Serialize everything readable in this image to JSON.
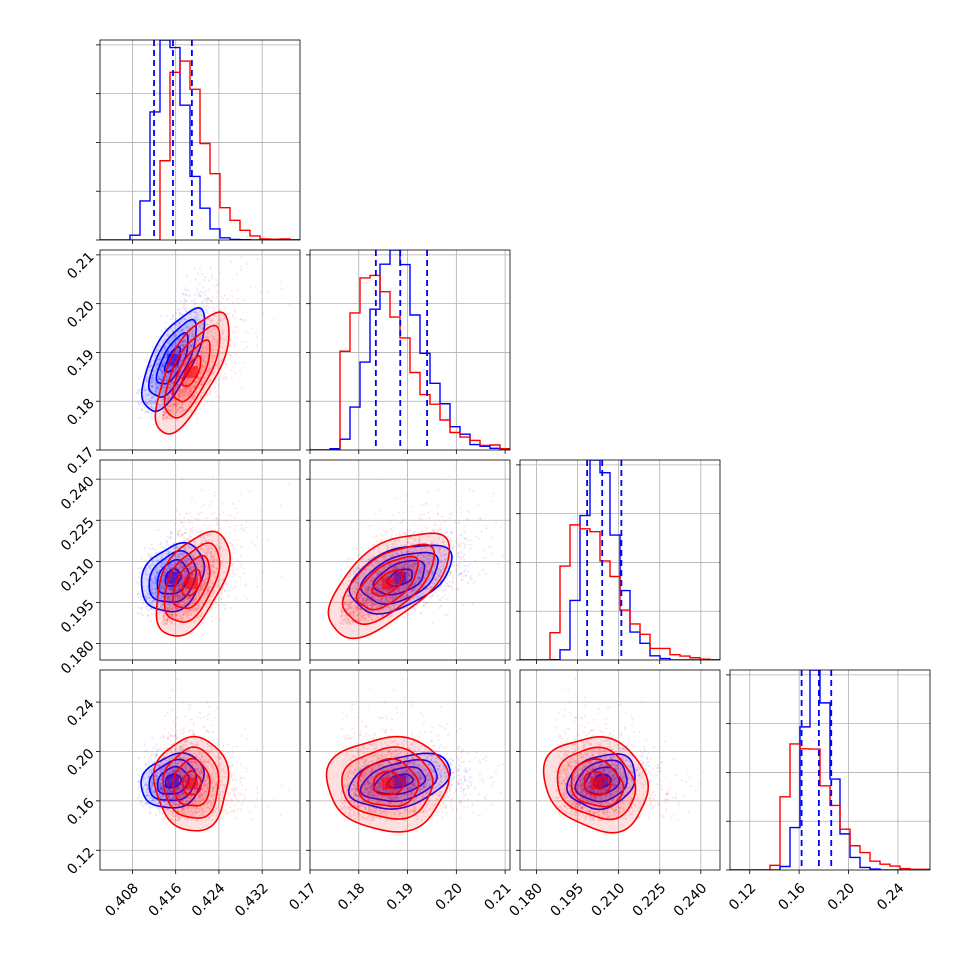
{
  "chart_data": {
    "type": "corner",
    "parameters": 4,
    "series": [
      {
        "color": "#0000ff",
        "mean": [
          0.4155,
          0.1885,
          0.204,
          0.176
        ],
        "sd": [
          0.0029,
          0.0052,
          0.0062,
          0.011
        ],
        "corr": [
          [
            1,
            0.7,
            0.25,
            0.2
          ],
          [
            0.7,
            1,
            0.45,
            0.35
          ],
          [
            0.25,
            0.45,
            1,
            0.2
          ],
          [
            0.2,
            0.35,
            0.2,
            1
          ]
        ],
        "quantiles": [
          [
            0.412,
            0.4155,
            0.419
          ],
          [
            0.1835,
            0.1885,
            0.194
          ],
          [
            0.1985,
            0.204,
            0.211
          ],
          [
            0.162,
            0.176,
            0.186
          ]
        ]
      },
      {
        "color": "#ff0000",
        "mean": [
          0.419,
          0.186,
          0.202,
          0.174
        ],
        "sd": [
          0.0034,
          0.0062,
          0.0095,
          0.019
        ],
        "corr": [
          [
            1,
            0.7,
            0.5,
            0.0
          ],
          [
            0.7,
            1,
            0.6,
            0.0
          ],
          [
            0.5,
            0.6,
            1,
            -0.15
          ],
          [
            0.0,
            0.0,
            -0.15,
            1
          ]
        ],
        "quantiles": null
      }
    ],
    "axis_ranges": [
      [
        0.402,
        0.439
      ],
      [
        0.17,
        0.211
      ],
      [
        0.174,
        0.247
      ],
      [
        0.104,
        0.266
      ]
    ],
    "x_ticks": [
      [
        "0.408",
        "0.416",
        "0.424",
        "0.432"
      ],
      [
        "0.17",
        "0.18",
        "0.19",
        "0.20",
        "0.21"
      ],
      [
        "0.180",
        "0.195",
        "0.210",
        "0.225",
        "0.240"
      ],
      [
        "0.12",
        "0.16",
        "0.20",
        "0.24"
      ]
    ],
    "y_ticks": [
      null,
      [
        "0.17",
        "0.18",
        "0.19",
        "0.20",
        "0.21"
      ],
      [
        "0.180",
        "0.195",
        "0.210",
        "0.225",
        "0.240"
      ],
      [
        "0.12",
        "0.16",
        "0.20",
        "0.24"
      ]
    ],
    "grid": true,
    "quantile_line_style": "dashed"
  }
}
